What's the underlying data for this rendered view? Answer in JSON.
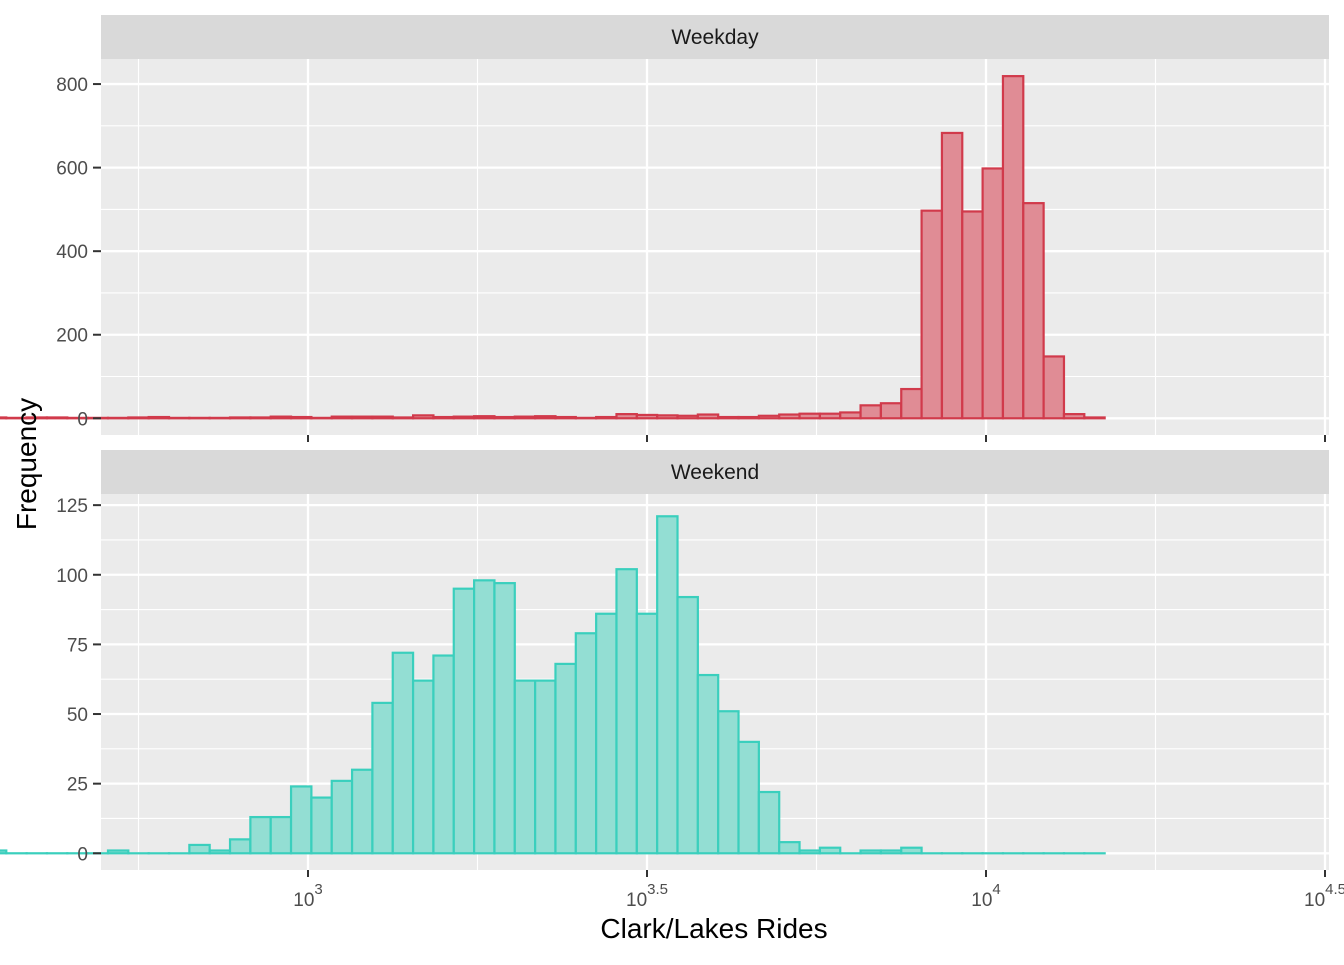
{
  "chart_data": {
    "type": "bar",
    "subtype": "faceted histogram",
    "xlabel": "Clark/Lakes Rides",
    "ylabel": "Frequency",
    "x_scale": "log10",
    "x_ticks": [
      {
        "value": 1000,
        "base": "10",
        "exp": "3"
      },
      {
        "value": 3162.28,
        "base": "10",
        "exp": "3.5"
      },
      {
        "value": 10000,
        "base": "10",
        "exp": "4"
      },
      {
        "value": 31622.8,
        "base": "10",
        "exp": "4.5"
      }
    ],
    "grid": true,
    "bin_x_log10_start": 2.525,
    "bin_width_log10": 0.03,
    "panels": [
      {
        "label": "Weekday",
        "fill": "#e08c95",
        "stroke": "#d13a4b",
        "ylim": [
          -40,
          860
        ],
        "y_ticks": [
          0,
          200,
          400,
          600,
          800
        ],
        "counts": [
          2,
          1,
          2,
          2,
          1,
          1,
          1,
          2,
          3,
          1,
          1,
          1,
          2,
          2,
          4,
          3,
          1,
          4,
          4,
          4,
          2,
          7,
          3,
          4,
          5,
          3,
          4,
          5,
          3,
          1,
          3,
          10,
          8,
          7,
          6,
          9,
          3,
          3,
          6,
          9,
          11,
          11,
          14,
          31,
          36,
          70,
          497,
          683,
          495,
          598,
          819,
          515,
          148,
          10,
          2
        ]
      },
      {
        "label": "Weekend",
        "fill": "#93ded3",
        "stroke": "#3acfbd",
        "ylim": [
          -6,
          129
        ],
        "y_ticks": [
          0,
          25,
          50,
          75,
          100,
          125
        ],
        "counts": [
          1,
          0,
          0,
          0,
          0,
          0,
          1,
          0,
          0,
          0,
          3,
          1,
          5,
          13,
          13,
          24,
          20,
          26,
          30,
          54,
          72,
          62,
          71,
          95,
          98,
          97,
          62,
          62,
          68,
          79,
          86,
          102,
          86,
          121,
          92,
          64,
          51,
          40,
          22,
          4,
          1,
          2,
          0,
          1,
          1,
          2,
          0,
          0,
          0,
          0,
          0,
          0,
          0,
          0,
          0
        ]
      }
    ]
  }
}
